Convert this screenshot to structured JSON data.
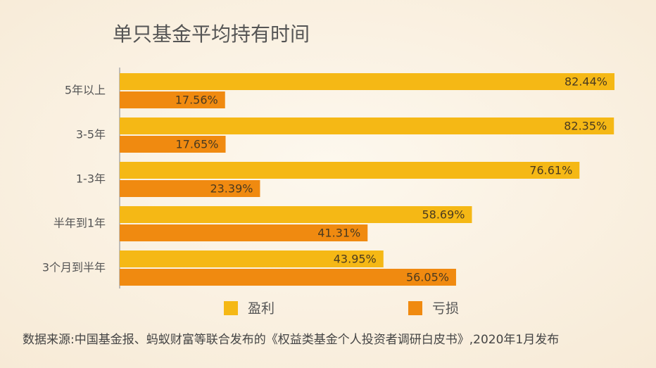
{
  "chart_data": {
    "type": "bar",
    "orientation": "horizontal",
    "title": "单只基金平均持有时间",
    "categories": [
      "5年以上",
      "3-5年",
      "1-3年",
      "半年到1年",
      "3个月到半年"
    ],
    "series": [
      {
        "name": "盈利",
        "color": "#f5b815",
        "values": [
          82.44,
          82.35,
          76.61,
          58.69,
          43.95
        ],
        "value_labels": [
          "82.44%",
          "82.35%",
          "76.61%",
          "58.69%",
          "43.95%"
        ]
      },
      {
        "name": "亏损",
        "color": "#f08a10",
        "values": [
          17.56,
          17.65,
          23.39,
          41.31,
          56.05
        ],
        "value_labels": [
          "17.56%",
          "17.65%",
          "23.39%",
          "41.31%",
          "56.05%"
        ]
      }
    ],
    "legend": "bottom",
    "source": "数据来源:中国基金报、蚂蚁财富等联合发布的《权益类基金个人投资者调研白皮书》,2020年1月发布"
  }
}
